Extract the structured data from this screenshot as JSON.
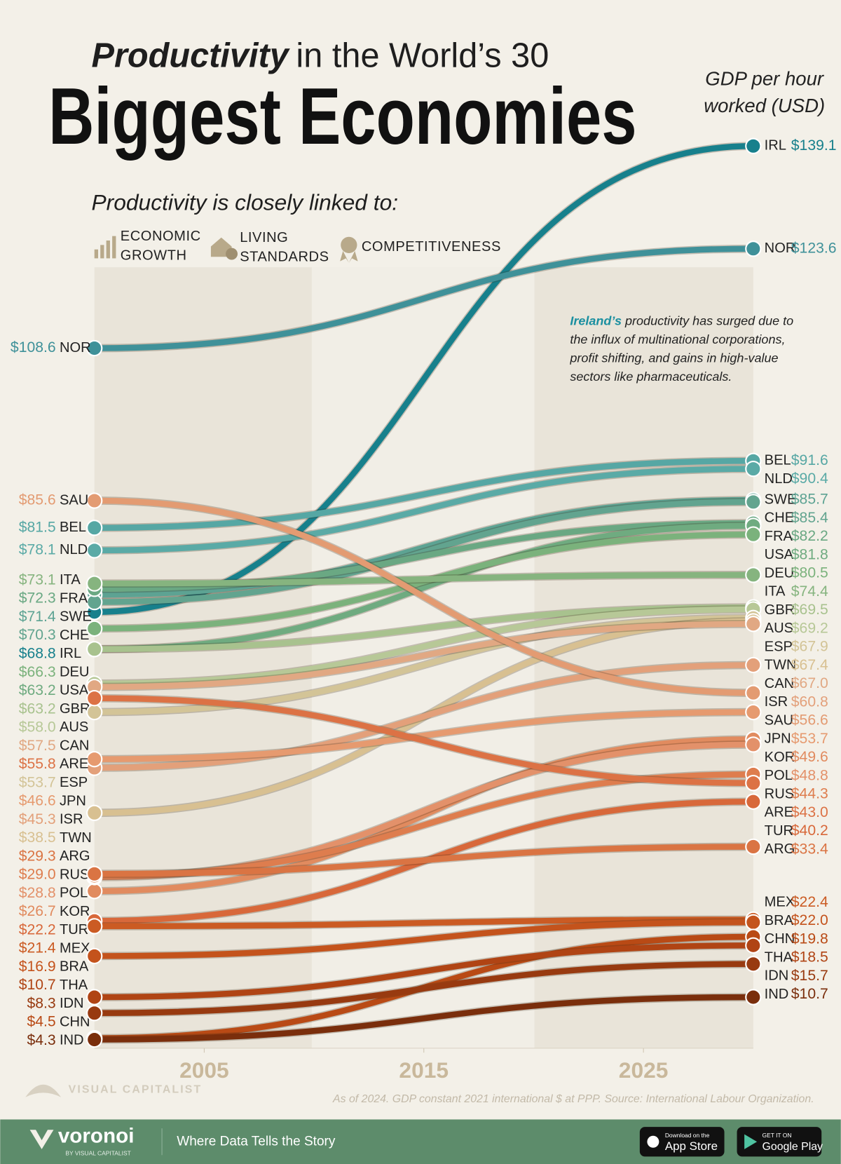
{
  "chart_data": {
    "type": "slope",
    "title_lead": "Productivity",
    "title_rest": "in the World’s 30",
    "title": "Biggest Economies",
    "subtitle": "Productivity is closely linked to:",
    "themes": [
      "ECONOMIC GROWTH",
      "LIVING STANDARDS",
      "COMPETITIVENESS"
    ],
    "y_label": "GDP per hour worked (USD)",
    "annotation": {
      "highlight": "Ireland’s",
      "text": "productivity has surged due to the influx of multinational corporations, profit shifting, and gains in high-value sectors like pharmaceuticals."
    },
    "note": "As of 2024. GDP constant 2021 international $ at PPP. Source: International Labour Organization.",
    "xlim": [
      2000,
      2030
    ],
    "xticks": [
      2005,
      2015,
      2025
    ],
    "ylim": [
      3,
      145
    ],
    "series": [
      {
        "name": "IRL",
        "color": "#17808c",
        "values": [
          68.8,
          139.1
        ],
        "value_labels": [
          "$68.8",
          "$139.1"
        ]
      },
      {
        "name": "NOR",
        "color": "#3f9199",
        "values": [
          108.6,
          123.6
        ],
        "value_labels": [
          "$108.6",
          "$123.6"
        ]
      },
      {
        "name": "BEL",
        "color": "#56a7a4",
        "values": [
          81.5,
          91.6
        ],
        "value_labels": [
          "$81.5",
          "$91.6"
        ]
      },
      {
        "name": "NLD",
        "color": "#5aaaa6",
        "values": [
          78.1,
          90.4
        ],
        "value_labels": [
          "$78.1",
          "$90.4"
        ]
      },
      {
        "name": "SWE",
        "color": "#5da393",
        "values": [
          71.4,
          85.7
        ],
        "value_labels": [
          "$71.4",
          "$85.7"
        ]
      },
      {
        "name": "CHE",
        "color": "#62a48f",
        "values": [
          70.3,
          85.4
        ],
        "value_labels": [
          "$70.3",
          "$85.4"
        ]
      },
      {
        "name": "FRA",
        "color": "#6aa883",
        "values": [
          72.3,
          82.2
        ],
        "value_labels": [
          "$72.3",
          "$82.2"
        ]
      },
      {
        "name": "USA",
        "color": "#6fab80",
        "values": [
          63.2,
          81.8
        ],
        "value_labels": [
          "$63.2",
          "$81.8"
        ]
      },
      {
        "name": "DEU",
        "color": "#7bb27c",
        "values": [
          66.3,
          80.5
        ],
        "value_labels": [
          "$66.3",
          "$80.5"
        ]
      },
      {
        "name": "ITA",
        "color": "#86b47f",
        "values": [
          73.1,
          74.4
        ],
        "value_labels": [
          "$73.1",
          "$74.4"
        ]
      },
      {
        "name": "GBR",
        "color": "#a8c28e",
        "values": [
          63.2,
          69.5
        ],
        "value_labels": [
          "$63.2",
          "$69.5"
        ]
      },
      {
        "name": "AUS",
        "color": "#b7c897",
        "values": [
          58.0,
          69.2
        ],
        "value_labels": [
          "$58.0",
          "$69.2"
        ]
      },
      {
        "name": "ESP",
        "color": "#d3c497",
        "values": [
          53.7,
          67.9
        ],
        "value_labels": [
          "$53.7",
          "$67.9"
        ]
      },
      {
        "name": "TWN",
        "color": "#d8c091",
        "values": [
          38.5,
          67.4
        ],
        "value_labels": [
          "$38.5",
          "$67.4"
        ]
      },
      {
        "name": "CAN",
        "color": "#e1a883",
        "values": [
          57.5,
          67.0
        ],
        "value_labels": [
          "$57.5",
          "$67.0"
        ]
      },
      {
        "name": "ISR",
        "color": "#e3a07a",
        "values": [
          45.3,
          60.8
        ],
        "value_labels": [
          "$45.3",
          "$60.8"
        ]
      },
      {
        "name": "SAU",
        "color": "#e39b72",
        "values": [
          85.6,
          56.6
        ],
        "value_labels": [
          "$85.6",
          "$56.6"
        ]
      },
      {
        "name": "JPN",
        "color": "#e69a6f",
        "values": [
          46.6,
          53.7
        ],
        "value_labels": [
          "$46.6",
          "$53.7"
        ]
      },
      {
        "name": "KOR",
        "color": "#e18b5f",
        "values": [
          26.7,
          49.6
        ],
        "value_labels": [
          "$26.7",
          "$49.6"
        ]
      },
      {
        "name": "POL",
        "color": "#e3916a",
        "values": [
          28.8,
          48.8
        ],
        "value_labels": [
          "$28.8",
          "$48.8"
        ]
      },
      {
        "name": "RUS",
        "color": "#de7d4e",
        "values": [
          29.0,
          44.3
        ],
        "value_labels": [
          "$29.0",
          "$44.3"
        ]
      },
      {
        "name": "ARE",
        "color": "#dc7245",
        "values": [
          55.8,
          43.0
        ],
        "value_labels": [
          "$55.8",
          "$43.0"
        ]
      },
      {
        "name": "TUR",
        "color": "#d8683a",
        "values": [
          22.2,
          40.2
        ],
        "value_labels": [
          "$22.2",
          "$40.2"
        ]
      },
      {
        "name": "ARG",
        "color": "#da7443",
        "values": [
          29.3,
          33.4
        ],
        "value_labels": [
          "$29.3",
          "$33.4"
        ]
      },
      {
        "name": "MEX",
        "color": "#cb5b23",
        "values": [
          21.4,
          22.4
        ],
        "value_labels": [
          "$21.4",
          "$22.4"
        ]
      },
      {
        "name": "BRA",
        "color": "#c4531c",
        "values": [
          16.9,
          22.0
        ],
        "value_labels": [
          "$16.9",
          "$22.0"
        ]
      },
      {
        "name": "CHN",
        "color": "#b94a15",
        "values": [
          4.5,
          19.8
        ],
        "value_labels": [
          "$4.5",
          "$19.8"
        ]
      },
      {
        "name": "THA",
        "color": "#b04414",
        "values": [
          10.7,
          18.5
        ],
        "value_labels": [
          "$10.7",
          "$18.5"
        ]
      },
      {
        "name": "IDN",
        "color": "#983a10",
        "values": [
          8.3,
          15.7
        ],
        "value_labels": [
          "$8.3",
          "$15.7"
        ]
      },
      {
        "name": "IND",
        "color": "#7a2e0c",
        "values": [
          4.3,
          10.7
        ],
        "value_labels": [
          "$4.3",
          "$10.7"
        ]
      }
    ]
  },
  "branding": {
    "publisher": "VISUAL CAPITALIST",
    "app_name": "voronoi",
    "app_by": "BY VISUAL CAPITALIST",
    "tagline": "Where Data Tells the Story",
    "app_store_small": "Download on the",
    "app_store": "App Store",
    "play_small": "GET IT ON",
    "play": "Google Play"
  }
}
